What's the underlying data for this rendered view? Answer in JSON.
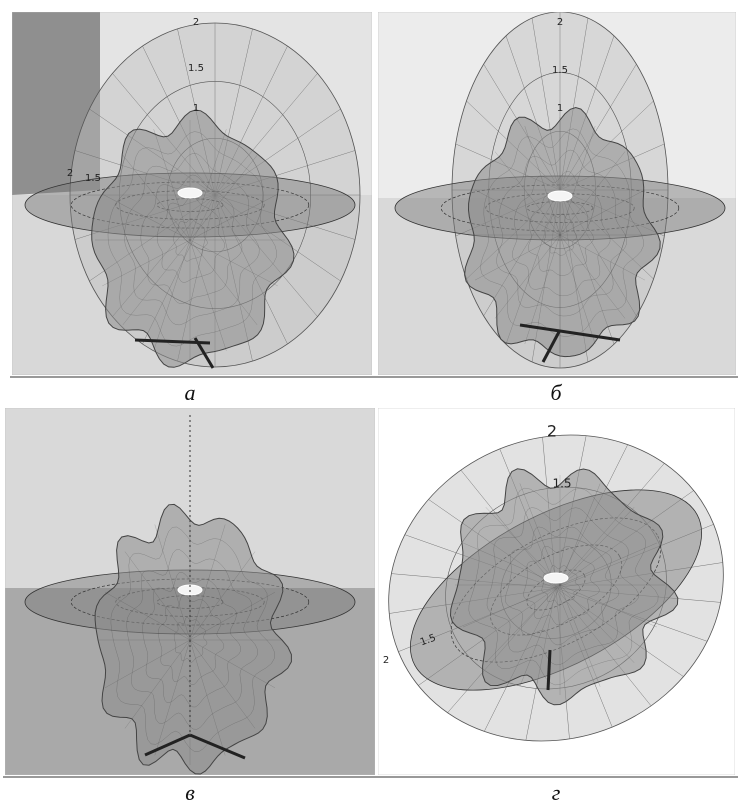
{
  "panels": [
    {
      "caption": "а",
      "scale_labels": [
        "2",
        "1.5",
        "1",
        "2",
        "1.5"
      ]
    },
    {
      "caption": "б",
      "scale_labels": [
        "2",
        "1.5",
        "1"
      ]
    },
    {
      "caption": "в"
    },
    {
      "caption": "г",
      "scale_labels": [
        "2",
        "1.5",
        "1.5",
        "2"
      ]
    }
  ]
}
